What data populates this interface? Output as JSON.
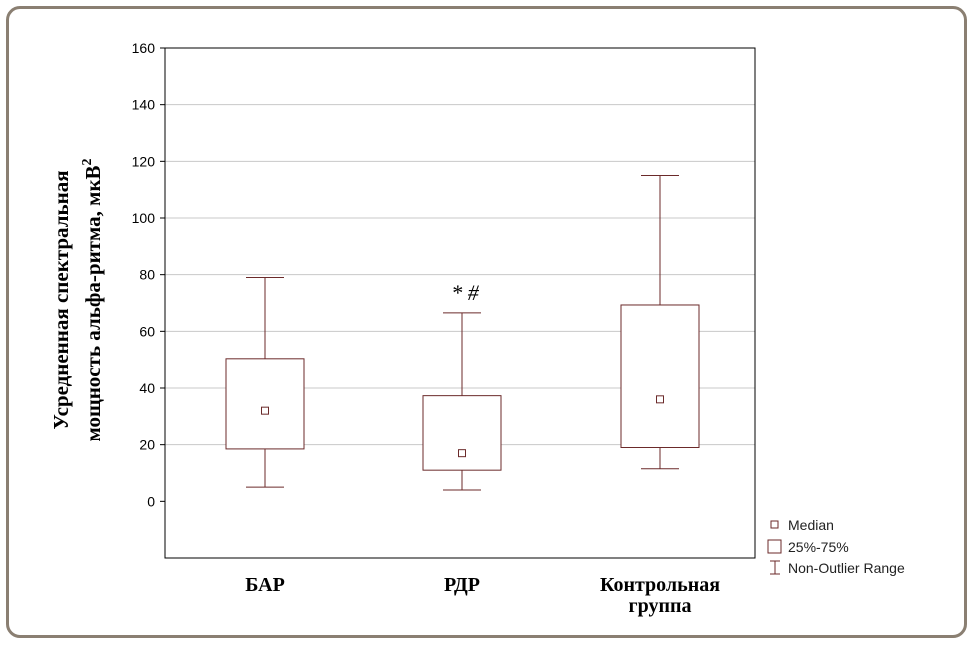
{
  "chart_data": {
    "type": "boxplot",
    "ylabel_line1": "Усредненная спектральная",
    "ylabel_line2": "мощность альфа-ритма, мкВ",
    "ylabel_sup": "2",
    "ylim": [
      -20,
      160
    ],
    "yticks": [
      0,
      20,
      40,
      60,
      80,
      100,
      120,
      140,
      160
    ],
    "grid": true,
    "categories": [
      {
        "label": [
          "БАР"
        ],
        "min": 5,
        "q1": 18.5,
        "median": 32,
        "q3": 50.3,
        "max": 79,
        "annotation": ""
      },
      {
        "label": [
          "РДР"
        ],
        "min": 4,
        "q1": 11,
        "median": 17,
        "q3": 37.3,
        "max": 66.5,
        "annotation": "* #"
      },
      {
        "label": [
          "Контрольная",
          "группа"
        ],
        "min": 11.5,
        "q1": 19,
        "median": 36,
        "q3": 69.3,
        "max": 115,
        "annotation": ""
      }
    ],
    "legend": {
      "placement": "bottom-right",
      "items": [
        "Median",
        "25%-75%",
        "Non-Outlier Range"
      ]
    },
    "colors": {
      "box": "#6b2a2a",
      "grid": "#c8c8c8",
      "frame": "#8a7f72"
    }
  }
}
